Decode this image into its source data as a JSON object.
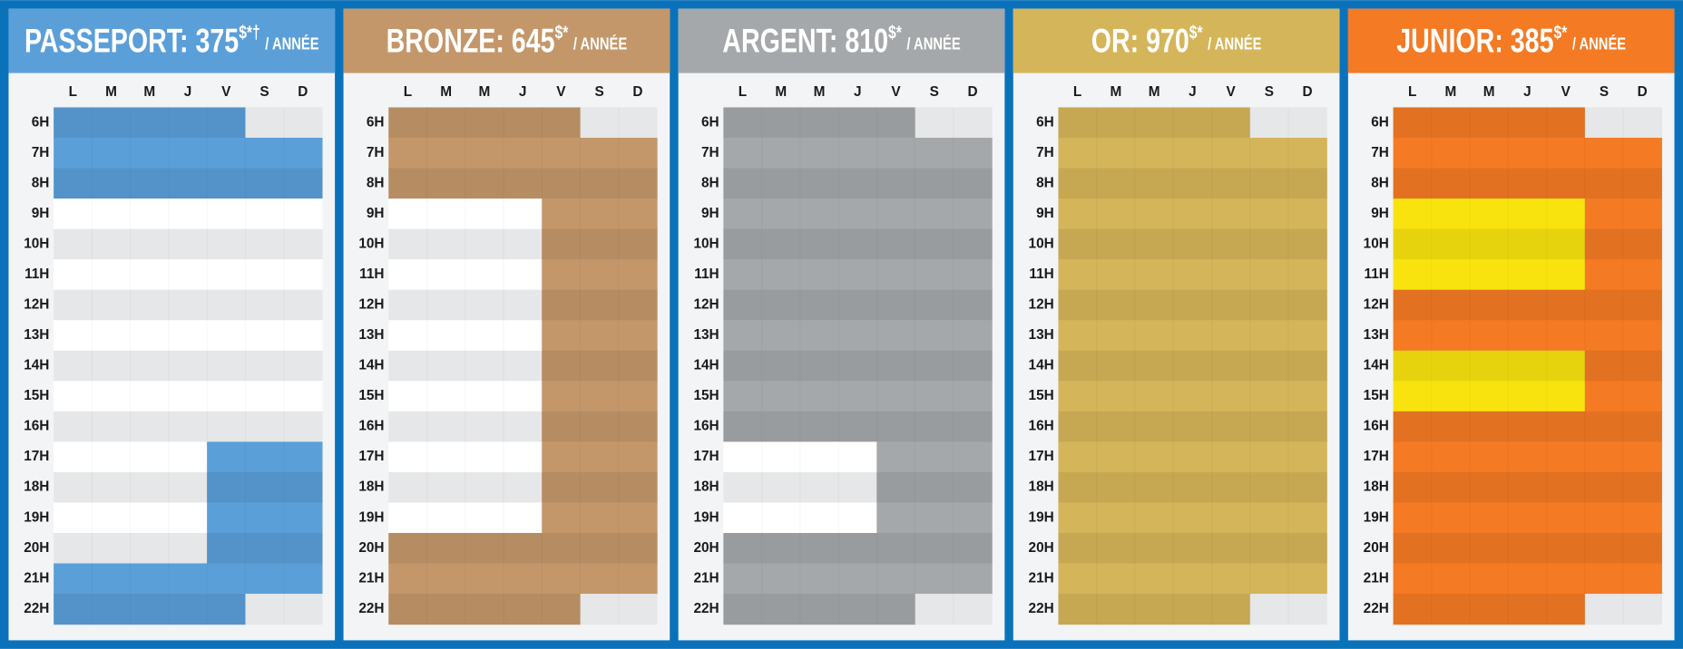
{
  "days": [
    "L",
    "M",
    "M",
    "J",
    "V",
    "S",
    "D"
  ],
  "hours": [
    "6H",
    "7H",
    "8H",
    "9H",
    "10H",
    "11H",
    "12H",
    "13H",
    "14H",
    "15H",
    "16H",
    "17H",
    "18H",
    "19H",
    "20H",
    "21H",
    "22H"
  ],
  "plans": [
    {
      "title": "PASSEPORT: 375",
      "mark": "$*†",
      "period": "/ ANNÉE",
      "color": "#5b9fd9",
      "access": [
        [
          1,
          1,
          1,
          1,
          1,
          0,
          0
        ],
        [
          1,
          1,
          1,
          1,
          1,
          1,
          1
        ],
        [
          1,
          1,
          1,
          1,
          1,
          1,
          1
        ],
        [
          0,
          0,
          0,
          0,
          0,
          0,
          0
        ],
        [
          0,
          0,
          0,
          0,
          0,
          0,
          0
        ],
        [
          0,
          0,
          0,
          0,
          0,
          0,
          0
        ],
        [
          0,
          0,
          0,
          0,
          0,
          0,
          0
        ],
        [
          0,
          0,
          0,
          0,
          0,
          0,
          0
        ],
        [
          0,
          0,
          0,
          0,
          0,
          0,
          0
        ],
        [
          0,
          0,
          0,
          0,
          0,
          0,
          0
        ],
        [
          0,
          0,
          0,
          0,
          0,
          0,
          0
        ],
        [
          0,
          0,
          0,
          0,
          1,
          1,
          1
        ],
        [
          0,
          0,
          0,
          0,
          1,
          1,
          1
        ],
        [
          0,
          0,
          0,
          0,
          1,
          1,
          1
        ],
        [
          0,
          0,
          0,
          0,
          1,
          1,
          1
        ],
        [
          1,
          1,
          1,
          1,
          1,
          1,
          1
        ],
        [
          1,
          1,
          1,
          1,
          1,
          0,
          0
        ]
      ]
    },
    {
      "title": "BRONZE: 645",
      "mark": "$*",
      "period": "/ ANNÉE",
      "color": "#c4976a",
      "access": [
        [
          1,
          1,
          1,
          1,
          1,
          0,
          0
        ],
        [
          1,
          1,
          1,
          1,
          1,
          1,
          1
        ],
        [
          1,
          1,
          1,
          1,
          1,
          1,
          1
        ],
        [
          0,
          0,
          0,
          0,
          1,
          1,
          1
        ],
        [
          0,
          0,
          0,
          0,
          1,
          1,
          1
        ],
        [
          0,
          0,
          0,
          0,
          1,
          1,
          1
        ],
        [
          0,
          0,
          0,
          0,
          1,
          1,
          1
        ],
        [
          0,
          0,
          0,
          0,
          1,
          1,
          1
        ],
        [
          0,
          0,
          0,
          0,
          1,
          1,
          1
        ],
        [
          0,
          0,
          0,
          0,
          1,
          1,
          1
        ],
        [
          0,
          0,
          0,
          0,
          1,
          1,
          1
        ],
        [
          0,
          0,
          0,
          0,
          1,
          1,
          1
        ],
        [
          0,
          0,
          0,
          0,
          1,
          1,
          1
        ],
        [
          0,
          0,
          0,
          0,
          1,
          1,
          1
        ],
        [
          1,
          1,
          1,
          1,
          1,
          1,
          1
        ],
        [
          1,
          1,
          1,
          1,
          1,
          1,
          1
        ],
        [
          1,
          1,
          1,
          1,
          1,
          0,
          0
        ]
      ]
    },
    {
      "title": "ARGENT: 810",
      "mark": "$*",
      "period": "/ ANNÉE",
      "color": "#a5a8aa",
      "access": [
        [
          1,
          1,
          1,
          1,
          1,
          0,
          0
        ],
        [
          1,
          1,
          1,
          1,
          1,
          1,
          1
        ],
        [
          1,
          1,
          1,
          1,
          1,
          1,
          1
        ],
        [
          1,
          1,
          1,
          1,
          1,
          1,
          1
        ],
        [
          1,
          1,
          1,
          1,
          1,
          1,
          1
        ],
        [
          1,
          1,
          1,
          1,
          1,
          1,
          1
        ],
        [
          1,
          1,
          1,
          1,
          1,
          1,
          1
        ],
        [
          1,
          1,
          1,
          1,
          1,
          1,
          1
        ],
        [
          1,
          1,
          1,
          1,
          1,
          1,
          1
        ],
        [
          1,
          1,
          1,
          1,
          1,
          1,
          1
        ],
        [
          1,
          1,
          1,
          1,
          1,
          1,
          1
        ],
        [
          0,
          0,
          0,
          0,
          1,
          1,
          1
        ],
        [
          0,
          0,
          0,
          0,
          1,
          1,
          1
        ],
        [
          0,
          0,
          0,
          0,
          1,
          1,
          1
        ],
        [
          1,
          1,
          1,
          1,
          1,
          1,
          1
        ],
        [
          1,
          1,
          1,
          1,
          1,
          1,
          1
        ],
        [
          1,
          1,
          1,
          1,
          1,
          0,
          0
        ]
      ]
    },
    {
      "title": "OR: 970",
      "mark": "$*",
      "period": "/ ANNÉE",
      "color": "#d5b55a",
      "access": [
        [
          1,
          1,
          1,
          1,
          1,
          0,
          0
        ],
        [
          1,
          1,
          1,
          1,
          1,
          1,
          1
        ],
        [
          1,
          1,
          1,
          1,
          1,
          1,
          1
        ],
        [
          1,
          1,
          1,
          1,
          1,
          1,
          1
        ],
        [
          1,
          1,
          1,
          1,
          1,
          1,
          1
        ],
        [
          1,
          1,
          1,
          1,
          1,
          1,
          1
        ],
        [
          1,
          1,
          1,
          1,
          1,
          1,
          1
        ],
        [
          1,
          1,
          1,
          1,
          1,
          1,
          1
        ],
        [
          1,
          1,
          1,
          1,
          1,
          1,
          1
        ],
        [
          1,
          1,
          1,
          1,
          1,
          1,
          1
        ],
        [
          1,
          1,
          1,
          1,
          1,
          1,
          1
        ],
        [
          1,
          1,
          1,
          1,
          1,
          1,
          1
        ],
        [
          1,
          1,
          1,
          1,
          1,
          1,
          1
        ],
        [
          1,
          1,
          1,
          1,
          1,
          1,
          1
        ],
        [
          1,
          1,
          1,
          1,
          1,
          1,
          1
        ],
        [
          1,
          1,
          1,
          1,
          1,
          1,
          1
        ],
        [
          1,
          1,
          1,
          1,
          1,
          0,
          0
        ]
      ]
    },
    {
      "title": "JUNIOR: 385",
      "mark": "$*",
      "period": "/ ANNÉE",
      "color": "#f47a24",
      "accent_color": "#f9e30f",
      "access": [
        [
          1,
          1,
          1,
          1,
          1,
          0,
          0
        ],
        [
          1,
          1,
          1,
          1,
          1,
          1,
          1
        ],
        [
          1,
          1,
          1,
          1,
          1,
          1,
          1
        ],
        [
          2,
          2,
          2,
          2,
          2,
          1,
          1
        ],
        [
          2,
          2,
          2,
          2,
          2,
          1,
          1
        ],
        [
          2,
          2,
          2,
          2,
          2,
          1,
          1
        ],
        [
          1,
          1,
          1,
          1,
          1,
          1,
          1
        ],
        [
          1,
          1,
          1,
          1,
          1,
          1,
          1
        ],
        [
          2,
          2,
          2,
          2,
          2,
          1,
          1
        ],
        [
          2,
          2,
          2,
          2,
          2,
          1,
          1
        ],
        [
          1,
          1,
          1,
          1,
          1,
          1,
          1
        ],
        [
          1,
          1,
          1,
          1,
          1,
          1,
          1
        ],
        [
          1,
          1,
          1,
          1,
          1,
          1,
          1
        ],
        [
          1,
          1,
          1,
          1,
          1,
          1,
          1
        ],
        [
          1,
          1,
          1,
          1,
          1,
          1,
          1
        ],
        [
          1,
          1,
          1,
          1,
          1,
          1,
          1
        ],
        [
          1,
          1,
          1,
          1,
          1,
          0,
          0
        ]
      ]
    }
  ]
}
